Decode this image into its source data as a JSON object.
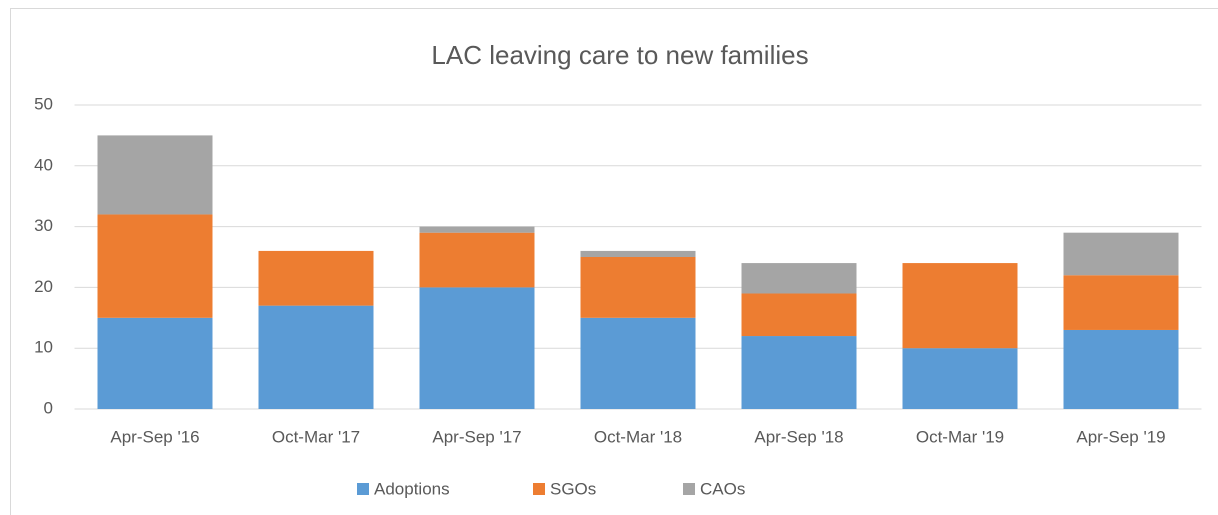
{
  "chart_data": {
    "type": "stacked_bar",
    "title": "LAC leaving care to new families",
    "categories": [
      "Apr-Sep '16",
      "Oct-Mar '17",
      "Apr-Sep '17",
      "Oct-Mar '18",
      "Apr-Sep '18",
      "Oct-Mar '19",
      "Apr-Sep '19"
    ],
    "series": [
      {
        "name": "Adoptions",
        "color": "#5b9bd5",
        "values": [
          15,
          17,
          20,
          15,
          12,
          10,
          13
        ]
      },
      {
        "name": "SGOs",
        "color": "#ed7d31",
        "values": [
          17,
          9,
          9,
          10,
          7,
          14,
          9
        ]
      },
      {
        "name": "CAOs",
        "color": "#a5a5a5",
        "values": [
          13,
          0,
          1,
          1,
          5,
          0,
          7
        ]
      }
    ],
    "ylim": [
      0,
      50
    ],
    "yticks": [
      0,
      10,
      20,
      30,
      40,
      50
    ],
    "grid": true,
    "legend": "bottom"
  }
}
